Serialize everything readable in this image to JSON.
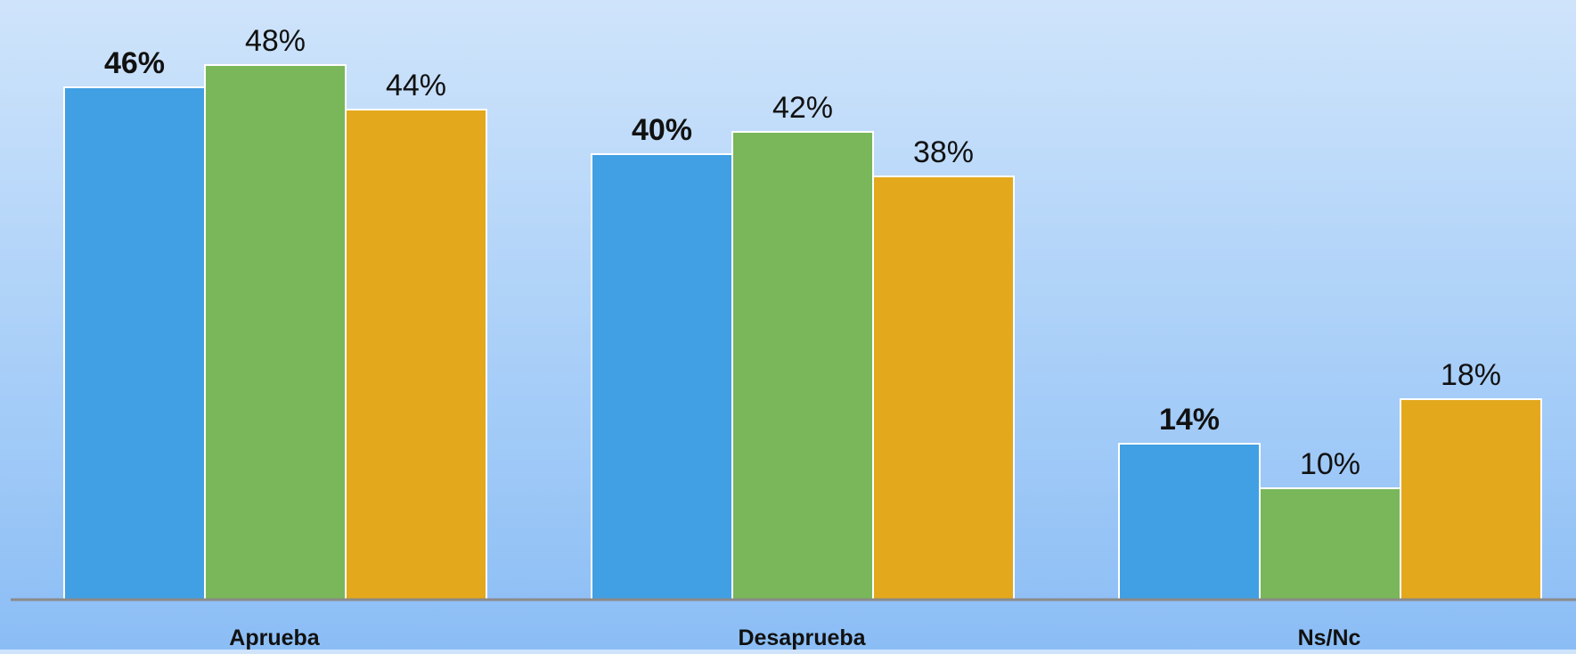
{
  "chart_data": {
    "type": "bar",
    "categories": [
      "Aprueba",
      "Desaprueba",
      "Ns/Nc"
    ],
    "series": [
      {
        "values": [
          46,
          40,
          14
        ],
        "color": "#419fe3",
        "label_bold": true
      },
      {
        "values": [
          48,
          42,
          10
        ],
        "color": "#79b75a",
        "label_bold": false
      },
      {
        "values": [
          44,
          38,
          18
        ],
        "color": "#e3a81c",
        "label_bold": false
      }
    ],
    "value_suffix": "%",
    "ylim": [
      0,
      50
    ],
    "grid": false,
    "legend": "none",
    "axis_color": "#8a8a8a",
    "bar_border_color": "#ffffff"
  }
}
